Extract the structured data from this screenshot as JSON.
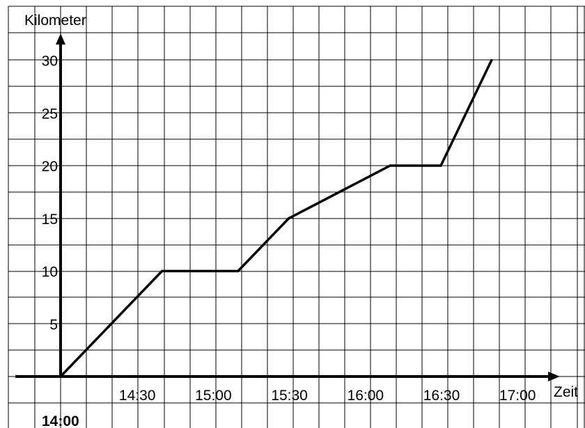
{
  "chart_data": {
    "type": "line",
    "xlabel": "Zeit",
    "ylabel": "Kilometer",
    "x_tick_labels": [
      "14:00",
      "14:30",
      "15:00",
      "15:30",
      "16:00",
      "16:30",
      "17:00"
    ],
    "y_tick_labels": [
      "5",
      "10",
      "15",
      "20",
      "25",
      "30"
    ],
    "xlim": [
      "14:00",
      "17:00"
    ],
    "ylim": [
      0,
      30
    ],
    "grid": true,
    "series": [
      {
        "x": [
          "14:00",
          "14:40",
          "15:10",
          "15:30",
          "16:10",
          "16:30",
          "16:50"
        ],
        "y": [
          0,
          10,
          10,
          15,
          20,
          20,
          30
        ]
      }
    ]
  }
}
